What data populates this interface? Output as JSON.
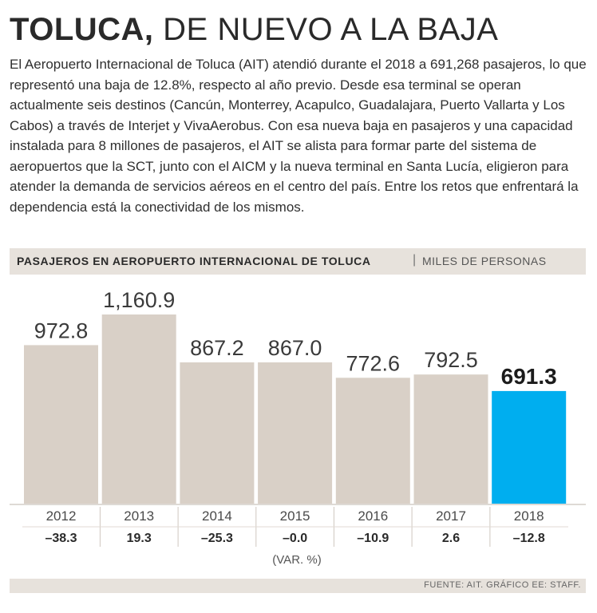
{
  "header": {
    "title_bold": "TOLUCA,",
    "title_rest": " DE NUEVO A LA BAJA",
    "body": "El Aeropuerto Internacional de Toluca (AIT) atendió durante el 2018 a 691,268 pasajeros, lo que representó una baja de 12.8%, respecto al año previo. Desde esa terminal se operan actualmente seis destinos (Cancún, Monterrey, Acapulco, Guadalajara, Puerto Vallarta y Los Cabos) a través de Interjet y VivaAerobus. Con esa nueva baja en pasajeros y una capacidad instalada para 8 millones de pasajeros, el AIT se alista para formar parte del sistema de aeropuertos que la SCT, junto con el AICM y la nueva terminal en Santa Lucía, eligieron para atender la demanda de servicios aéreos en el centro del país. Entre los retos que enfrentará la dependencia está la conectividad de los mismos."
  },
  "chart_header": {
    "title": "PASAJEROS EN AEROPUERTO INTERNACIONAL DE TOLUCA",
    "separator": "|",
    "unit": "MILES DE PERSONAS"
  },
  "chart_data": {
    "type": "bar",
    "title": "PASAJEROS EN AEROPUERTO INTERNACIONAL DE TOLUCA",
    "ylabel": "MILES DE PERSONAS",
    "categories": [
      "2012",
      "2013",
      "2014",
      "2015",
      "2016",
      "2017",
      "2018"
    ],
    "values": [
      972.8,
      1160.9,
      867.2,
      867.0,
      772.6,
      792.5,
      691.3
    ],
    "value_labels": [
      "972.8",
      "1,160.9",
      "867.2",
      "867.0",
      "772.6",
      "792.5",
      "691.3"
    ],
    "variation_labels": [
      "–38.3",
      "19.3",
      "–25.3",
      "–0.0",
      "–10.9",
      "2.6",
      "–12.8"
    ],
    "variation_caption": "(VAR. %)",
    "ylim": [
      0,
      1160.9
    ],
    "bar_color": "#d9d0c7",
    "highlight_color": "#00aeef",
    "highlight_index": 6
  },
  "footer": {
    "source": "FUENTE: AIT. GRÁFICO EE: STAFF."
  }
}
